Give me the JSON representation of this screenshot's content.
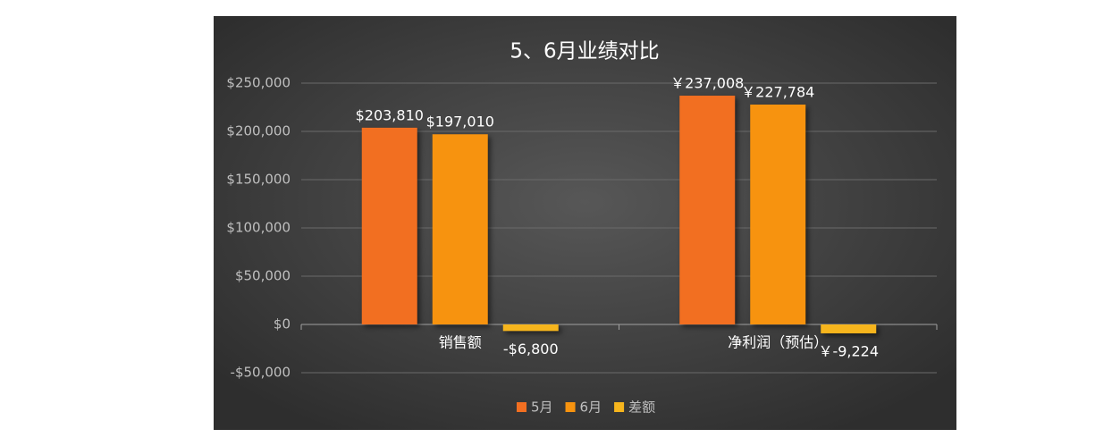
{
  "chart_data": {
    "type": "bar",
    "title": "5、6月业绩对比",
    "categories": [
      "销售额",
      "净利润（预估）"
    ],
    "series": [
      {
        "name": "5月",
        "color": "#f26f21",
        "values": [
          203810,
          237008
        ],
        "value_labels": [
          "$203,810",
          "￥237,008"
        ]
      },
      {
        "name": "6月",
        "color": "#f7930f",
        "values": [
          197010,
          227784
        ],
        "value_labels": [
          "$197,010",
          "￥227,784"
        ]
      },
      {
        "name": "差额",
        "color": "#f6b51d",
        "values": [
          -6800,
          -9224
        ],
        "value_labels": [
          "-$6,800",
          "￥-9,224"
        ]
      }
    ],
    "ylim": [
      -50000,
      250000
    ],
    "yticks": [
      {
        "value": -50000,
        "label": "-$50,000"
      },
      {
        "value": 0,
        "label": "$0"
      },
      {
        "value": 50000,
        "label": "$50,000"
      },
      {
        "value": 100000,
        "label": "$100,000"
      },
      {
        "value": 150000,
        "label": "$150,000"
      },
      {
        "value": 200000,
        "label": "$200,000"
      },
      {
        "value": 250000,
        "label": "$250,000"
      }
    ],
    "grid": true,
    "legend": "bottom"
  }
}
